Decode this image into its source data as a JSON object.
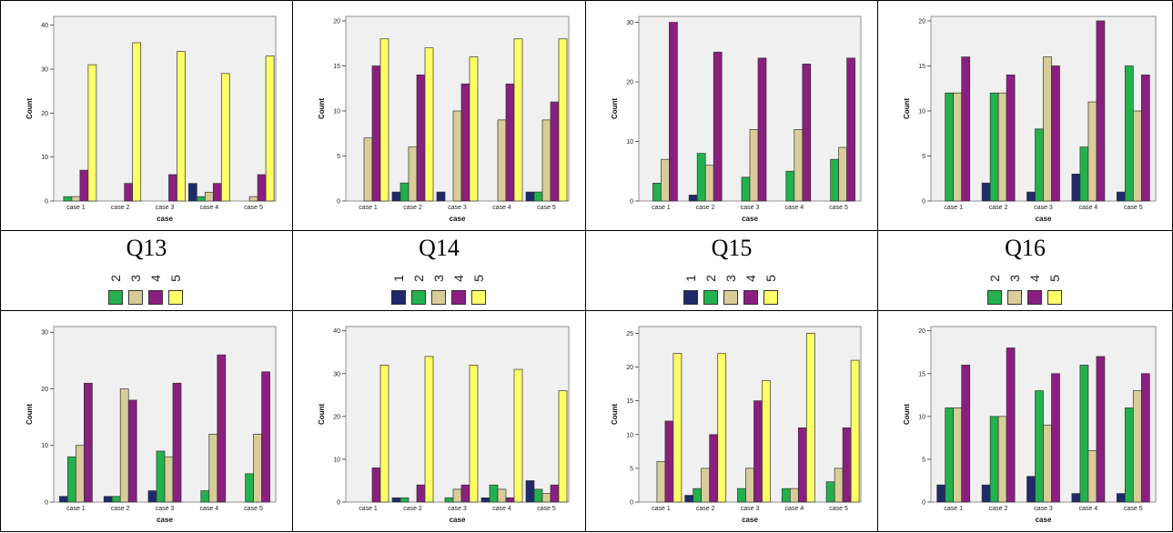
{
  "colors": {
    "1": "#1f2a6b",
    "2": "#23b14d",
    "3": "#d8cd98",
    "4": "#8a1f80",
    "5": "#ffff66",
    "plot_bg": "#f0f0f0"
  },
  "labels": [
    {
      "title": "Q13",
      "legend": [
        "2",
        "3",
        "4",
        "5"
      ]
    },
    {
      "title": "Q14",
      "legend": [
        "1",
        "2",
        "3",
        "4",
        "5"
      ]
    },
    {
      "title": "Q15",
      "legend": [
        "1",
        "2",
        "3",
        "4",
        "5"
      ]
    },
    {
      "title": "Q16",
      "legend": [
        "2",
        "3",
        "4",
        "5"
      ]
    }
  ],
  "chart_data": [
    {
      "type": "bar",
      "xlabel": "case",
      "ylabel": "Count",
      "ylim": [
        0,
        42
      ],
      "yticks": [
        0,
        10,
        20,
        30,
        40
      ],
      "categories": [
        "case 1",
        "case 2",
        "case 3",
        "case 4",
        "case 5"
      ],
      "series": [
        {
          "name": "1",
          "values": [
            0,
            0,
            0,
            4,
            0
          ]
        },
        {
          "name": "2",
          "values": [
            1,
            0,
            0,
            1,
            0
          ]
        },
        {
          "name": "3",
          "values": [
            1,
            0,
            0,
            2,
            1
          ]
        },
        {
          "name": "4",
          "values": [
            7,
            4,
            6,
            4,
            6
          ]
        },
        {
          "name": "5",
          "values": [
            31,
            36,
            34,
            29,
            33
          ]
        }
      ]
    },
    {
      "type": "bar",
      "xlabel": "case",
      "ylabel": "Count",
      "ylim": [
        0,
        20.5
      ],
      "yticks": [
        0,
        5,
        10,
        15,
        20
      ],
      "categories": [
        "case 1",
        "case 2",
        "case 3",
        "case 4",
        "case 5"
      ],
      "series": [
        {
          "name": "1",
          "values": [
            0,
            1,
            1,
            0,
            1
          ]
        },
        {
          "name": "2",
          "values": [
            0,
            2,
            0,
            0,
            1
          ]
        },
        {
          "name": "3",
          "values": [
            7,
            6,
            10,
            9,
            9
          ]
        },
        {
          "name": "4",
          "values": [
            15,
            14,
            13,
            13,
            11
          ]
        },
        {
          "name": "5",
          "values": [
            18,
            17,
            16,
            18,
            18
          ]
        }
      ]
    },
    {
      "type": "bar",
      "xlabel": "case",
      "ylabel": "Count",
      "ylim": [
        0,
        31
      ],
      "yticks": [
        0,
        10,
        20,
        30
      ],
      "categories": [
        "case 1",
        "case 2",
        "case 3",
        "case 4",
        "case 5"
      ],
      "series": [
        {
          "name": "1",
          "values": [
            0,
            1,
            0,
            0,
            0
          ]
        },
        {
          "name": "2",
          "values": [
            3,
            8,
            4,
            5,
            7
          ]
        },
        {
          "name": "3",
          "values": [
            7,
            6,
            12,
            12,
            9
          ]
        },
        {
          "name": "4",
          "values": [
            30,
            25,
            24,
            23,
            24
          ]
        }
      ]
    },
    {
      "type": "bar",
      "xlabel": "case",
      "ylabel": "Count",
      "ylim": [
        0,
        20.5
      ],
      "yticks": [
        0,
        5,
        10,
        15,
        20
      ],
      "categories": [
        "case 1",
        "case 2",
        "case 3",
        "case 4",
        "case 5"
      ],
      "series": [
        {
          "name": "1",
          "values": [
            0,
            2,
            1,
            3,
            1
          ]
        },
        {
          "name": "2",
          "values": [
            12,
            12,
            8,
            6,
            15
          ]
        },
        {
          "name": "3",
          "values": [
            12,
            12,
            16,
            11,
            10
          ]
        },
        {
          "name": "4",
          "values": [
            16,
            14,
            15,
            20,
            14
          ]
        }
      ]
    },
    {
      "type": "bar",
      "xlabel": "case",
      "ylabel": "Count",
      "ylim": [
        0,
        31
      ],
      "yticks": [
        0,
        10,
        20,
        30
      ],
      "categories": [
        "case 1",
        "case 2",
        "case 3",
        "case 4",
        "case 5"
      ],
      "series": [
        {
          "name": "1",
          "values": [
            1,
            1,
            2,
            0,
            0
          ]
        },
        {
          "name": "2",
          "values": [
            8,
            1,
            9,
            2,
            5
          ]
        },
        {
          "name": "3",
          "values": [
            10,
            20,
            8,
            12,
            12
          ]
        },
        {
          "name": "4",
          "values": [
            21,
            18,
            21,
            26,
            23
          ]
        }
      ]
    },
    {
      "type": "bar",
      "xlabel": "case",
      "ylabel": "Count",
      "ylim": [
        0,
        41
      ],
      "yticks": [
        0,
        10,
        20,
        30,
        40
      ],
      "categories": [
        "case 1",
        "case 2",
        "case 3",
        "case 4",
        "case 5"
      ],
      "series": [
        {
          "name": "1",
          "values": [
            0,
            1,
            0,
            1,
            5
          ]
        },
        {
          "name": "2",
          "values": [
            0,
            1,
            1,
            4,
            3
          ]
        },
        {
          "name": "3",
          "values": [
            0,
            0,
            3,
            3,
            2
          ]
        },
        {
          "name": "4",
          "values": [
            8,
            4,
            4,
            1,
            4
          ]
        },
        {
          "name": "5",
          "values": [
            32,
            34,
            32,
            31,
            26
          ]
        }
      ]
    },
    {
      "type": "bar",
      "xlabel": "case",
      "ylabel": "Count",
      "ylim": [
        0,
        26
      ],
      "yticks": [
        0,
        5,
        10,
        15,
        20,
        25
      ],
      "categories": [
        "case 1",
        "case 2",
        "case 3",
        "case 4",
        "case 5"
      ],
      "series": [
        {
          "name": "1",
          "values": [
            0,
            1,
            0,
            0,
            0
          ]
        },
        {
          "name": "2",
          "values": [
            0,
            2,
            2,
            2,
            3
          ]
        },
        {
          "name": "3",
          "values": [
            6,
            5,
            5,
            2,
            5
          ]
        },
        {
          "name": "4",
          "values": [
            12,
            10,
            15,
            11,
            11
          ]
        },
        {
          "name": "5",
          "values": [
            22,
            22,
            18,
            25,
            21
          ]
        }
      ]
    },
    {
      "type": "bar",
      "xlabel": "case",
      "ylabel": "Count",
      "ylim": [
        0,
        20.5
      ],
      "yticks": [
        0,
        5,
        10,
        15,
        20
      ],
      "categories": [
        "case 1",
        "case 2",
        "case 3",
        "case 4",
        "case 5"
      ],
      "series": [
        {
          "name": "1",
          "values": [
            2,
            2,
            3,
            1,
            1
          ]
        },
        {
          "name": "2",
          "values": [
            11,
            10,
            13,
            16,
            11
          ]
        },
        {
          "name": "3",
          "values": [
            11,
            10,
            9,
            6,
            13
          ]
        },
        {
          "name": "4",
          "values": [
            16,
            18,
            15,
            17,
            15
          ]
        }
      ]
    }
  ]
}
